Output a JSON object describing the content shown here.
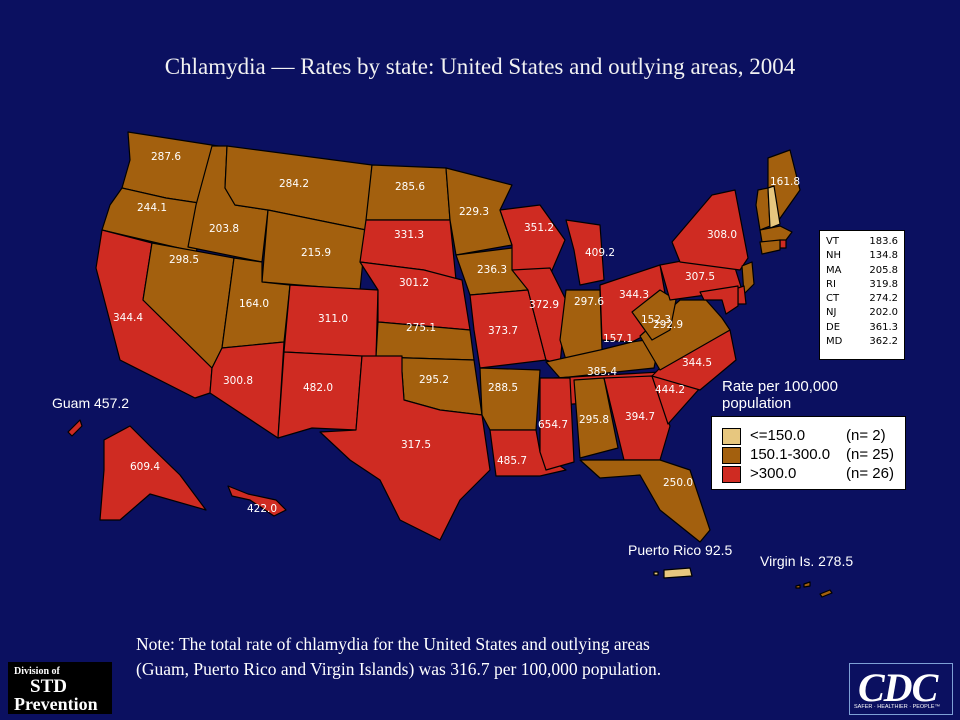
{
  "title": "Chlamydia — Rates by state: United States and outlying areas, 2004",
  "colors": {
    "background": "#0b1060",
    "low": "#e7c77f",
    "mid": "#a3600e",
    "high": "#cf2b22"
  },
  "states": [
    {
      "abbr": "WA",
      "rate": "287.6",
      "class": "mid"
    },
    {
      "abbr": "OR",
      "rate": "244.1",
      "class": "mid"
    },
    {
      "abbr": "CA",
      "rate": "344.4",
      "class": "high"
    },
    {
      "abbr": "ID",
      "rate": "203.8",
      "class": "mid"
    },
    {
      "abbr": "NV",
      "rate": "298.5",
      "class": "mid"
    },
    {
      "abbr": "MT",
      "rate": "284.2",
      "class": "mid"
    },
    {
      "abbr": "WY",
      "rate": "215.9",
      "class": "mid"
    },
    {
      "abbr": "UT",
      "rate": "164.0",
      "class": "mid"
    },
    {
      "abbr": "AZ",
      "rate": "300.8",
      "class": "high"
    },
    {
      "abbr": "CO",
      "rate": "311.0",
      "class": "high"
    },
    {
      "abbr": "NM",
      "rate": "482.0",
      "class": "high"
    },
    {
      "abbr": "ND",
      "rate": "285.6",
      "class": "mid"
    },
    {
      "abbr": "SD",
      "rate": "331.3",
      "class": "high"
    },
    {
      "abbr": "NE",
      "rate": "301.2",
      "class": "high"
    },
    {
      "abbr": "KS",
      "rate": "275.1",
      "class": "mid"
    },
    {
      "abbr": "OK",
      "rate": "295.2",
      "class": "mid"
    },
    {
      "abbr": "TX",
      "rate": "317.5",
      "class": "high"
    },
    {
      "abbr": "MN",
      "rate": "229.3",
      "class": "mid"
    },
    {
      "abbr": "IA",
      "rate": "236.3",
      "class": "mid"
    },
    {
      "abbr": "MO",
      "rate": "373.7",
      "class": "high"
    },
    {
      "abbr": "AR",
      "rate": "288.5",
      "class": "mid"
    },
    {
      "abbr": "LA",
      "rate": "485.7",
      "class": "high"
    },
    {
      "abbr": "WI",
      "rate": "351.2",
      "class": "high"
    },
    {
      "abbr": "IL",
      "rate": "372.9",
      "class": "high"
    },
    {
      "abbr": "MI",
      "rate": "409.2",
      "class": "high"
    },
    {
      "abbr": "IN",
      "rate": "297.6",
      "class": "mid"
    },
    {
      "abbr": "OH",
      "rate": "344.3",
      "class": "high"
    },
    {
      "abbr": "KY",
      "rate": "157.1",
      "class": "mid"
    },
    {
      "abbr": "TN",
      "rate": "385.4",
      "class": "high"
    },
    {
      "abbr": "MS",
      "rate": "654.7",
      "class": "high"
    },
    {
      "abbr": "AL",
      "rate": "295.8",
      "class": "mid"
    },
    {
      "abbr": "GA",
      "rate": "394.7",
      "class": "high"
    },
    {
      "abbr": "FL",
      "rate": "250.0",
      "class": "mid"
    },
    {
      "abbr": "SC",
      "rate": "444.2",
      "class": "high"
    },
    {
      "abbr": "NC",
      "rate": "344.5",
      "class": "high"
    },
    {
      "abbr": "VA",
      "rate": "292.9",
      "class": "mid"
    },
    {
      "abbr": "WV",
      "rate": "152.3",
      "class": "mid"
    },
    {
      "abbr": "PA",
      "rate": "307.5",
      "class": "high"
    },
    {
      "abbr": "NY",
      "rate": "308.0",
      "class": "high"
    },
    {
      "abbr": "ME",
      "rate": "161.8",
      "class": "mid"
    },
    {
      "abbr": "AK",
      "rate": "609.4",
      "class": "high"
    },
    {
      "abbr": "HI",
      "rate": "422.0",
      "class": "high"
    }
  ],
  "territories": [
    {
      "label": "Guam 457.2",
      "class": "high"
    },
    {
      "label": "Puerto Rico 92.5",
      "class": "low"
    },
    {
      "label": "Virgin Is. 278.5",
      "class": "mid"
    }
  ],
  "ne_table": [
    {
      "state": "VT",
      "rate": "183.6"
    },
    {
      "state": "NH",
      "rate": "134.8"
    },
    {
      "state": "MA",
      "rate": "205.8"
    },
    {
      "state": "RI",
      "rate": "319.8"
    },
    {
      "state": "CT",
      "rate": "274.2"
    },
    {
      "state": "NJ",
      "rate": "202.0"
    },
    {
      "state": "DE",
      "rate": "361.3"
    },
    {
      "state": "MD",
      "rate": "362.2"
    }
  ],
  "legend": {
    "title_line1": "Rate per 100,000",
    "title_line2": "population",
    "items": [
      {
        "range": "<=150.0",
        "count": "(n=  2)",
        "class": "low"
      },
      {
        "range": "150.1-300.0",
        "count": "(n= 25)",
        "class": "mid"
      },
      {
        "range": ">300.0",
        "count": "(n= 26)",
        "class": "high"
      }
    ]
  },
  "note_line1": "Note: The total rate of chlamydia for the United States and outlying areas",
  "note_line2": "(Guam, Puerto Rico and Virgin Islands) was 316.7 per 100,000 population.",
  "std_logo": {
    "line1": "Division of",
    "line2": "STD",
    "line3": "Prevention"
  },
  "cdc_logo": {
    "name": "CDC",
    "tagline": "SAFER · HEALTHIER · PEOPLE™"
  }
}
